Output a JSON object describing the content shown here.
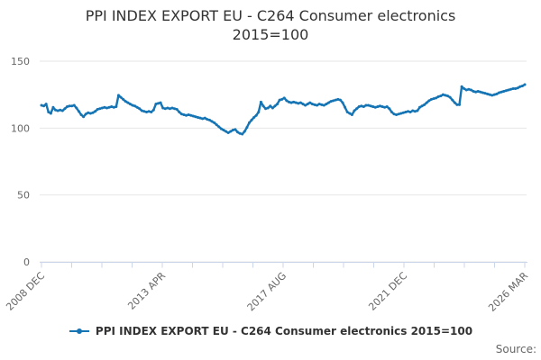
{
  "title": {
    "line1": "PPI INDEX EXPORT EU - C264 Consumer electronics",
    "line2": "2015=100"
  },
  "legend": {
    "label": "PPI INDEX EXPORT EU - C264 Consumer electronics 2015=100"
  },
  "source": {
    "label": "Source:"
  },
  "colors": {
    "series": "#1574b4",
    "grid": "#e6e6e6",
    "axis": "#ccd6eb",
    "axis_label": "#666666",
    "title_text": "#333333"
  },
  "chart_data": {
    "type": "line",
    "title": "PPI INDEX EXPORT EU - C264 Consumer electronics 2015=100",
    "x_start": "2008-12",
    "x_end": "2026-03",
    "x_frequency": "monthly",
    "x_tick_labels": [
      "2008 DEC",
      "2013 APR",
      "2017 AUG",
      "2021 DEC",
      "2026 MAR"
    ],
    "x_minor_tick_count": 17,
    "ylim": [
      0,
      150
    ],
    "y_ticks": [
      0,
      50,
      100,
      150
    ],
    "grid": "horizontal",
    "legend_position": "bottom",
    "series": [
      {
        "name": "PPI INDEX EXPORT EU - C264 Consumer electronics 2015=100",
        "color": "#1574b4",
        "monthly_values": [
          117,
          116.5,
          118,
          112,
          111,
          115.5,
          113.5,
          113,
          113.5,
          113,
          114.5,
          116,
          116.5,
          116.5,
          117,
          115,
          112.5,
          110,
          108.5,
          110.5,
          111.5,
          111,
          111.5,
          112.5,
          114,
          114.5,
          115,
          115.5,
          115,
          115.5,
          116,
          115.5,
          116,
          124.5,
          123,
          121.5,
          120,
          119,
          118,
          117,
          116.5,
          115.5,
          114.5,
          113,
          112.5,
          112,
          112.5,
          112,
          113.5,
          118,
          118.5,
          119,
          115,
          114.5,
          115,
          114.5,
          115,
          114.5,
          114,
          112,
          110.5,
          110,
          109.5,
          110,
          109.5,
          109,
          108.5,
          108,
          107.5,
          107,
          107.5,
          106.5,
          106,
          105,
          104,
          102.5,
          101,
          99.5,
          98.5,
          97.5,
          96.5,
          97.5,
          98.5,
          99,
          97,
          96,
          95.5,
          97.5,
          100.5,
          104,
          106,
          108,
          109.5,
          112,
          119.5,
          116.5,
          114.5,
          115,
          116.5,
          115,
          116.5,
          118,
          121,
          121.5,
          122.5,
          120.5,
          119.5,
          119,
          119.5,
          119,
          118.5,
          119,
          118,
          117,
          118,
          119,
          118,
          117.5,
          117,
          118,
          117.5,
          117,
          118,
          119,
          120,
          120.5,
          121,
          121.5,
          121,
          119,
          115.5,
          112,
          111,
          110,
          113,
          114.5,
          116,
          116.5,
          116,
          117,
          117,
          116.5,
          116,
          115.5,
          116,
          116.5,
          116,
          115.5,
          116,
          114.5,
          112,
          110.5,
          110,
          110.5,
          111,
          111.5,
          112,
          112.5,
          112,
          113,
          112.5,
          113,
          115.5,
          116.5,
          117.5,
          119,
          120.5,
          121.5,
          122,
          122.5,
          123.5,
          124,
          125,
          124.5,
          124,
          123,
          121,
          119,
          117.5,
          117.5,
          131,
          129.5,
          128.5,
          129,
          128.5,
          127.5,
          127,
          127.5,
          127,
          126.5,
          126,
          125.5,
          125,
          124.5,
          125,
          125.5,
          126.5,
          127,
          127.5,
          128,
          128.5,
          129,
          129.5,
          129.5,
          130,
          131,
          131.5,
          132.5
        ]
      }
    ]
  }
}
